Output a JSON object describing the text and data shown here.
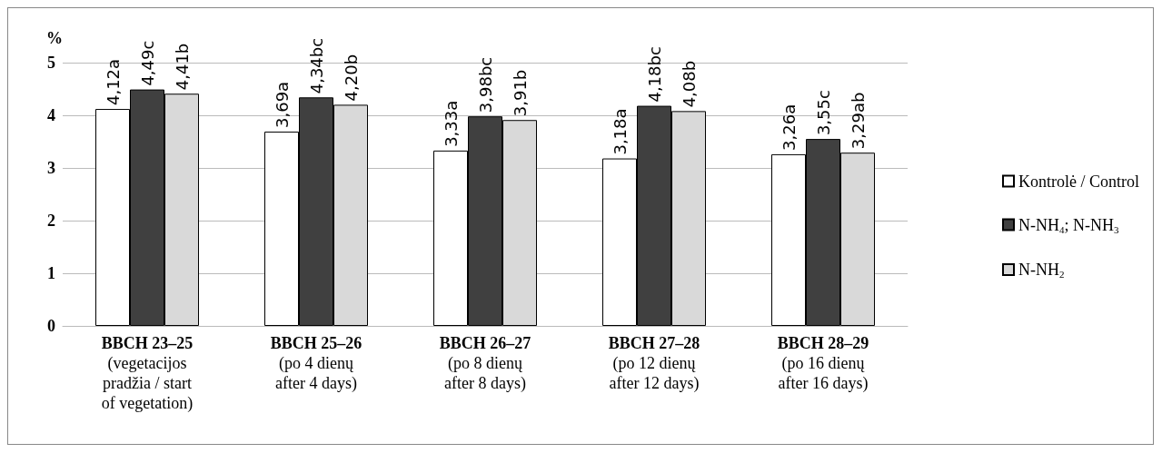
{
  "chart_data": {
    "type": "bar",
    "ylabel": "%",
    "categories": [
      "BBCH 23–25\n(vegetacijos\npradžia / start\nof vegetation)",
      "BBCH 25–26\n(po 4 dienų\nafter 4 days)",
      "BBCH 26–27\n(po 8 dienų\nafter 8 days)",
      "BBCH 27–28\n(po 12 dienų\nafter 12 days)",
      "BBCH 28–29\n(po 16 dienų\nafter 16 days)"
    ],
    "series": [
      {
        "name": "Kontrolė / Control",
        "color": "#ffffff",
        "values": [
          4.12,
          3.69,
          3.33,
          3.18,
          3.26
        ],
        "value_labels": [
          "4,12a",
          "3,69a",
          "3,33a",
          "3,18a",
          "3,26a"
        ]
      },
      {
        "name": "N-NH$_{4}$; N-NH$_{3}$",
        "color": "#404040",
        "values": [
          4.49,
          4.34,
          3.98,
          4.18,
          3.55
        ],
        "value_labels": [
          "4,49c",
          "4,34bc",
          "3,98bc",
          "4,18bc",
          "3,55c"
        ]
      },
      {
        "name": "N-NH$_{2}$",
        "color": "#d9d9d9",
        "values": [
          4.41,
          4.2,
          3.91,
          4.08,
          3.29
        ],
        "value_labels": [
          "4,41b",
          "4,20b",
          "3,91b",
          "4,08b",
          "3,29ab"
        ]
      }
    ],
    "ylim": [
      0,
      5
    ],
    "yticks": [
      0,
      1,
      2,
      3,
      4,
      5
    ],
    "grid": "y",
    "legend": "right"
  }
}
